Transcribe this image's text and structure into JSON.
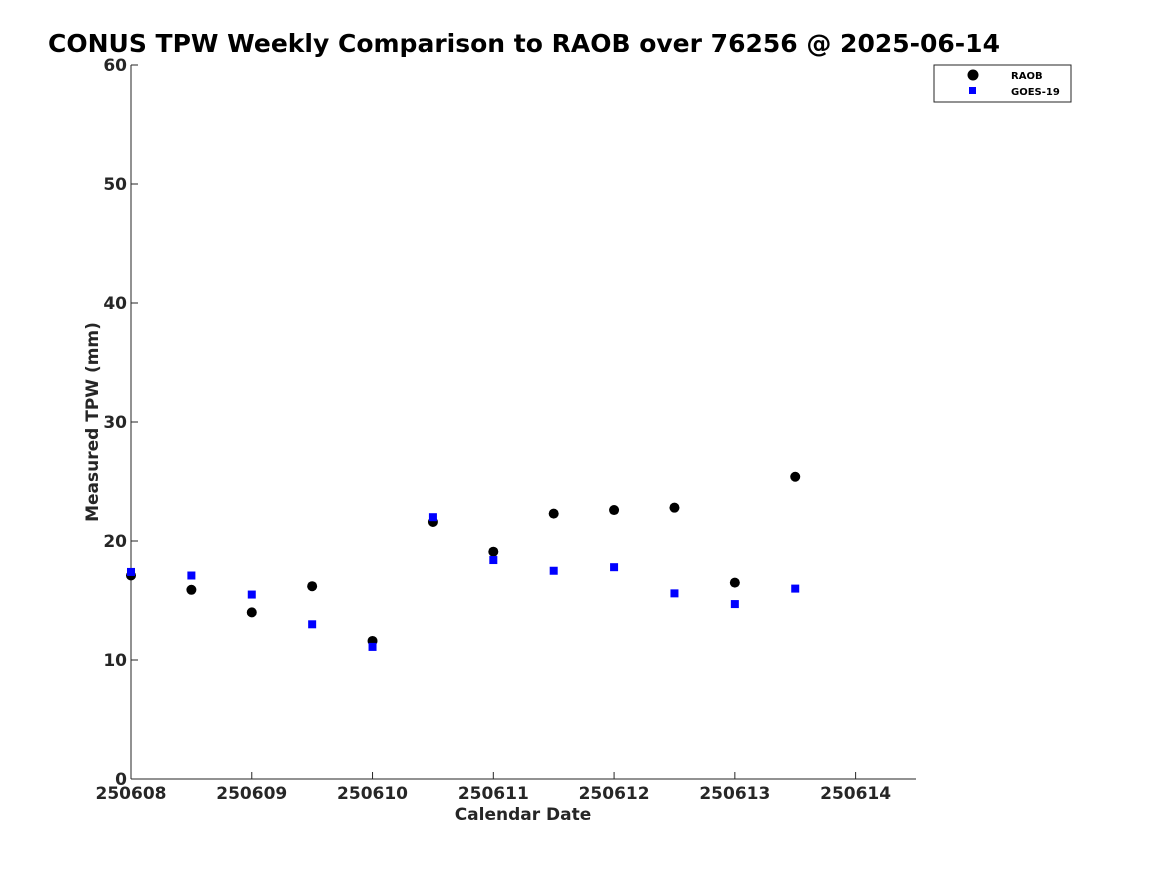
{
  "chart_data": {
    "type": "scatter",
    "title": "CONUS TPW Weekly Comparison to RAOB over 76256 @ 2025-06-14",
    "xlabel": "Calendar Date",
    "ylabel": "Measured TPW (mm)",
    "xlim": [
      250608,
      250614.5
    ],
    "ylim": [
      0,
      60
    ],
    "xticks": [
      250608,
      250609,
      250610,
      250611,
      250612,
      250613,
      250614
    ],
    "xtick_labels": [
      "250608",
      "250609",
      "250610",
      "250611",
      "250612",
      "250613",
      "250614"
    ],
    "yticks": [
      0,
      10,
      20,
      30,
      40,
      50,
      60
    ],
    "ytick_labels": [
      "0",
      "10",
      "20",
      "30",
      "40",
      "50",
      "60"
    ],
    "grid": false,
    "legend_position": "top-right",
    "series": [
      {
        "name": "RAOB",
        "marker": "circle",
        "color": "#000000",
        "x": [
          250608.0,
          250608.5,
          250609.0,
          250609.5,
          250610.0,
          250610.5,
          250611.0,
          250611.5,
          250612.0,
          250612.5,
          250613.0,
          250613.5
        ],
        "y": [
          17.1,
          15.9,
          14.0,
          16.2,
          11.6,
          21.6,
          19.1,
          22.3,
          22.6,
          22.8,
          16.5,
          25.4
        ]
      },
      {
        "name": "GOES-19",
        "marker": "square",
        "color": "#0000ff",
        "x": [
          250608.0,
          250608.5,
          250609.0,
          250609.5,
          250610.0,
          250610.5,
          250611.0,
          250611.5,
          250612.0,
          250612.5,
          250613.0,
          250613.5
        ],
        "y": [
          17.4,
          17.1,
          15.5,
          13.0,
          11.1,
          22.0,
          18.4,
          17.5,
          17.8,
          15.6,
          14.7,
          16.0
        ]
      }
    ]
  }
}
